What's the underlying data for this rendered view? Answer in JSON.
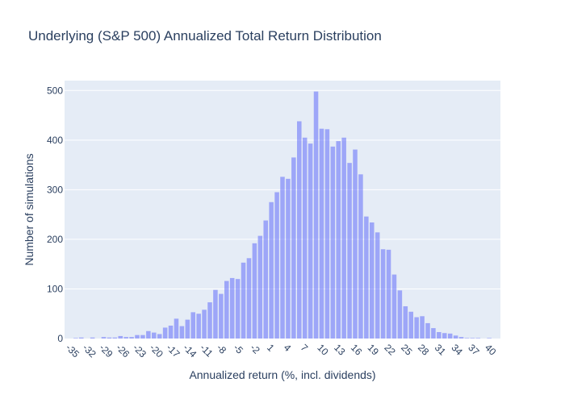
{
  "chart_data": {
    "type": "bar",
    "title": "Underlying (S&P 500) Annualized Total Return Distribution",
    "xlabel": "Annualized return (%, incl. dividends)",
    "ylabel": "Number of simulations",
    "xlim": [
      -36,
      42
    ],
    "ylim": [
      0,
      520
    ],
    "grid": true,
    "bin_width": 1,
    "color": "#636efa",
    "bar_opacity": 0.55,
    "plot_bg": "#e5ecf6",
    "xtick_values": [
      -35,
      -32,
      -29,
      -26,
      -23,
      -20,
      -17,
      -14,
      -11,
      -8,
      -5,
      -2,
      1,
      4,
      7,
      10,
      13,
      16,
      19,
      22,
      25,
      28,
      31,
      34,
      37,
      40
    ],
    "xtick_labels": [
      "-35",
      "-32",
      "-29",
      "-26",
      "-23",
      "-20",
      "-17",
      "-14",
      "-11",
      "-8",
      "-5",
      "-2",
      "1",
      "4",
      "7",
      "10",
      "13",
      "16",
      "19",
      "22",
      "25",
      "28",
      "31",
      "34",
      "37",
      "40"
    ],
    "ytick_values": [
      0,
      100,
      200,
      300,
      400,
      500
    ],
    "ytick_labels": [
      "0",
      "100",
      "200",
      "300",
      "400",
      "500"
    ],
    "x": [
      -34,
      -33,
      -32,
      -31,
      -30,
      -29,
      -28,
      -27,
      -26,
      -25,
      -24,
      -23,
      -22,
      -21,
      -20,
      -19,
      -18,
      -17,
      -16,
      -15,
      -14,
      -13,
      -12,
      -11,
      -10,
      -9,
      -8,
      -7,
      -6,
      -5,
      -4,
      -3,
      -2,
      -1,
      0,
      1,
      2,
      3,
      4,
      5,
      6,
      7,
      8,
      9,
      10,
      11,
      12,
      13,
      14,
      15,
      16,
      17,
      18,
      19,
      20,
      21,
      22,
      23,
      24,
      25,
      26,
      27,
      28,
      29,
      30,
      31,
      32,
      33,
      34,
      35,
      36,
      37,
      38,
      39,
      40
    ],
    "values": [
      1,
      2,
      0,
      2,
      0,
      3,
      2,
      2,
      5,
      3,
      3,
      7,
      7,
      15,
      12,
      9,
      22,
      26,
      40,
      25,
      38,
      53,
      50,
      58,
      73,
      98,
      90,
      116,
      122,
      120,
      153,
      162,
      192,
      207,
      238,
      275,
      295,
      326,
      322,
      365,
      438,
      405,
      393,
      498,
      423,
      422,
      387,
      398,
      405,
      354,
      381,
      331,
      246,
      234,
      214,
      180,
      179,
      129,
      97,
      65,
      54,
      43,
      45,
      31,
      21,
      13,
      11,
      10,
      6,
      3,
      1,
      1,
      1,
      0,
      1
    ]
  }
}
